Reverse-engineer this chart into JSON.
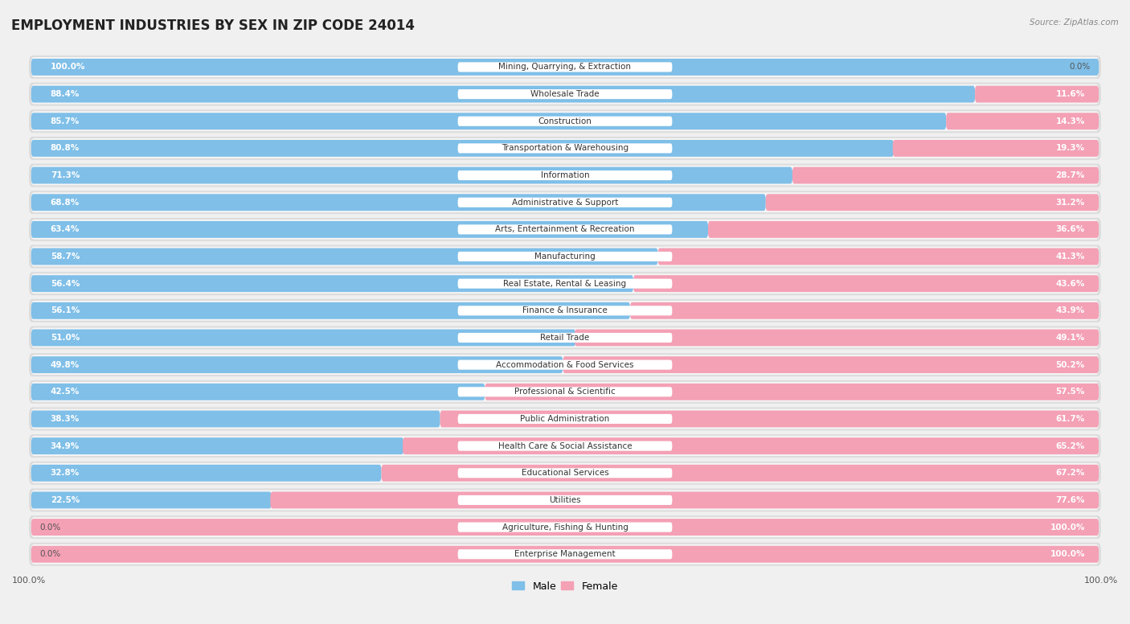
{
  "title": "EMPLOYMENT INDUSTRIES BY SEX IN ZIP CODE 24014",
  "source": "Source: ZipAtlas.com",
  "male_color": "#7fbfe8",
  "female_color": "#f4a0b5",
  "background_color": "#f0f0f0",
  "row_bg_color": "#e8e8e8",
  "label_bg_color": "#ffffff",
  "categories": [
    "Mining, Quarrying, & Extraction",
    "Wholesale Trade",
    "Construction",
    "Transportation & Warehousing",
    "Information",
    "Administrative & Support",
    "Arts, Entertainment & Recreation",
    "Manufacturing",
    "Real Estate, Rental & Leasing",
    "Finance & Insurance",
    "Retail Trade",
    "Accommodation & Food Services",
    "Professional & Scientific",
    "Public Administration",
    "Health Care & Social Assistance",
    "Educational Services",
    "Utilities",
    "Agriculture, Fishing & Hunting",
    "Enterprise Management"
  ],
  "male_values": [
    100.0,
    88.4,
    85.7,
    80.8,
    71.3,
    68.8,
    63.4,
    58.7,
    56.4,
    56.1,
    51.0,
    49.8,
    42.5,
    38.3,
    34.9,
    32.8,
    22.5,
    0.0,
    0.0
  ],
  "female_values": [
    0.0,
    11.6,
    14.3,
    19.3,
    28.7,
    31.2,
    36.6,
    41.3,
    43.6,
    43.9,
    49.1,
    50.2,
    57.5,
    61.7,
    65.2,
    67.2,
    77.6,
    100.0,
    100.0
  ],
  "title_fontsize": 12,
  "label_fontsize": 7.5,
  "pct_fontsize": 7.5,
  "tick_fontsize": 8,
  "legend_fontsize": 9
}
